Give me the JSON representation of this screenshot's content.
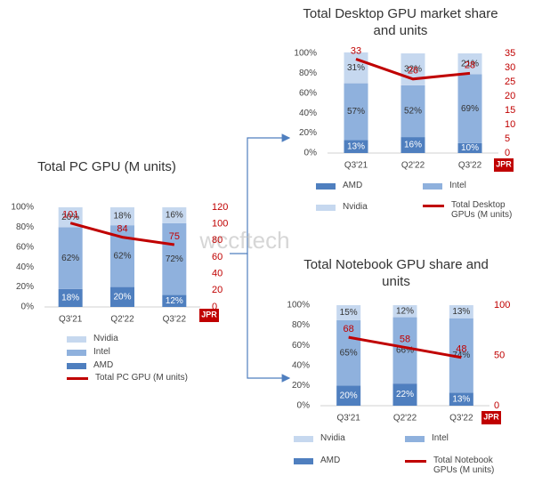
{
  "chart_data": [
    {
      "type": "bar",
      "title": "Total PC GPU (M units)",
      "categories": [
        "Q3'21",
        "Q2'22",
        "Q3'22"
      ],
      "series": [
        {
          "name": "AMD",
          "color": "#4f7fbf",
          "values": [
            18,
            20,
            12
          ],
          "value_labels": [
            "18%",
            "20%",
            "12%"
          ]
        },
        {
          "name": "Intel",
          "color": "#8fb1dd",
          "values": [
            62,
            62,
            72
          ],
          "value_labels": [
            "62%",
            "62%",
            "72%"
          ]
        },
        {
          "name": "Nvidia",
          "color": "#c6d8ef",
          "values": [
            20,
            18,
            16
          ],
          "value_labels": [
            "20%",
            "18%",
            "16%"
          ]
        },
        {
          "name": "Total PC GPU (M units)",
          "type": "line",
          "axis": "y2",
          "color": "#c00000",
          "values": [
            101,
            84,
            75
          ]
        }
      ],
      "ylim": [
        0,
        100
      ],
      "yticks": [
        {
          "value": 0,
          "label": "0%"
        },
        {
          "value": 20,
          "label": "20%"
        },
        {
          "value": 40,
          "label": "40%"
        },
        {
          "value": 60,
          "label": "60%"
        },
        {
          "value": 80,
          "label": "80%"
        },
        {
          "value": 100,
          "label": "100%"
        }
      ],
      "y2lim": [
        0,
        120
      ],
      "y2ticks": [
        0,
        20,
        40,
        60,
        80,
        100,
        120
      ]
    },
    {
      "type": "bar",
      "title": "Total Desktop GPU market share and units",
      "categories": [
        "Q3'21",
        "Q2'22",
        "Q3'22"
      ],
      "series": [
        {
          "name": "AMD",
          "color": "#4f7fbf",
          "values": [
            13,
            16,
            10
          ],
          "value_labels": [
            "13%",
            "16%",
            "10%"
          ]
        },
        {
          "name": "Intel",
          "color": "#8fb1dd",
          "values": [
            57,
            52,
            69
          ],
          "value_labels": [
            "57%",
            "52%",
            "69%"
          ]
        },
        {
          "name": "Nvidia",
          "color": "#c6d8ef",
          "values": [
            31,
            32,
            21
          ],
          "value_labels": [
            "31%",
            "32%",
            "21%"
          ]
        },
        {
          "name": "Total Desktop GPUs (M units)",
          "type": "line",
          "axis": "y2",
          "color": "#c00000",
          "values": [
            33,
            26,
            28
          ]
        }
      ],
      "ylim": [
        0,
        100
      ],
      "yticks": [
        {
          "value": 0,
          "label": "0%"
        },
        {
          "value": 20,
          "label": "20%"
        },
        {
          "value": 40,
          "label": "40%"
        },
        {
          "value": 60,
          "label": "60%"
        },
        {
          "value": 80,
          "label": "80%"
        },
        {
          "value": 100,
          "label": "100%"
        }
      ],
      "y2lim": [
        0,
        35
      ],
      "y2ticks": [
        0,
        5,
        10,
        15,
        20,
        25,
        30,
        35
      ]
    },
    {
      "type": "bar",
      "title": "Total Notebook GPU share and units",
      "categories": [
        "Q3'21",
        "Q2'22",
        "Q3'22"
      ],
      "series": [
        {
          "name": "AMD",
          "color": "#4f7fbf",
          "values": [
            20,
            22,
            13
          ],
          "value_labels": [
            "20%",
            "22%",
            "13%"
          ]
        },
        {
          "name": "Intel",
          "color": "#8fb1dd",
          "values": [
            65,
            66,
            74
          ],
          "value_labels": [
            "65%",
            "66%",
            "74%"
          ]
        },
        {
          "name": "Nvidia",
          "color": "#c6d8ef",
          "values": [
            15,
            12,
            13
          ],
          "value_labels": [
            "15%",
            "12%",
            "13%"
          ]
        },
        {
          "name": "Total Notebook GPUs (M units)",
          "type": "line",
          "axis": "y2",
          "color": "#c00000",
          "values": [
            68,
            58,
            48
          ]
        }
      ],
      "ylim": [
        0,
        100
      ],
      "yticks": [
        {
          "value": 0,
          "label": "0%"
        },
        {
          "value": 20,
          "label": "20%"
        },
        {
          "value": 40,
          "label": "40%"
        },
        {
          "value": 60,
          "label": "60%"
        },
        {
          "value": 80,
          "label": "80%"
        },
        {
          "value": 100,
          "label": "100%"
        }
      ],
      "y2lim": [
        0,
        100
      ],
      "y2ticks": [
        0,
        50,
        100
      ]
    }
  ],
  "watermark": "wccftech",
  "logo": "JPR"
}
